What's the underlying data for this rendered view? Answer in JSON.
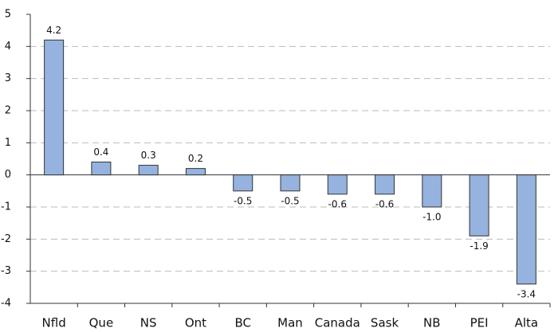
{
  "chart_data": {
    "type": "bar",
    "categories": [
      "Nfld",
      "Que",
      "NS",
      "Ont",
      "BC",
      "Man",
      "Canada",
      "Sask",
      "NB",
      "PEI",
      "Alta"
    ],
    "values": [
      4.2,
      0.4,
      0.3,
      0.2,
      -0.5,
      -0.5,
      -0.6,
      -0.6,
      -1.0,
      -1.9,
      -3.4
    ],
    "value_labels": [
      "4.2",
      "0.4",
      "0.3",
      "0.2",
      "-0.5",
      "-0.5",
      "-0.6",
      "-0.6",
      "-1.0",
      "-1.9",
      "-3.4"
    ],
    "color": "#95b3de",
    "ylim": [
      -4,
      5
    ],
    "yticks": [
      -4,
      -3,
      -2,
      -1,
      0,
      1,
      2,
      3,
      4,
      5
    ],
    "grid": true
  }
}
